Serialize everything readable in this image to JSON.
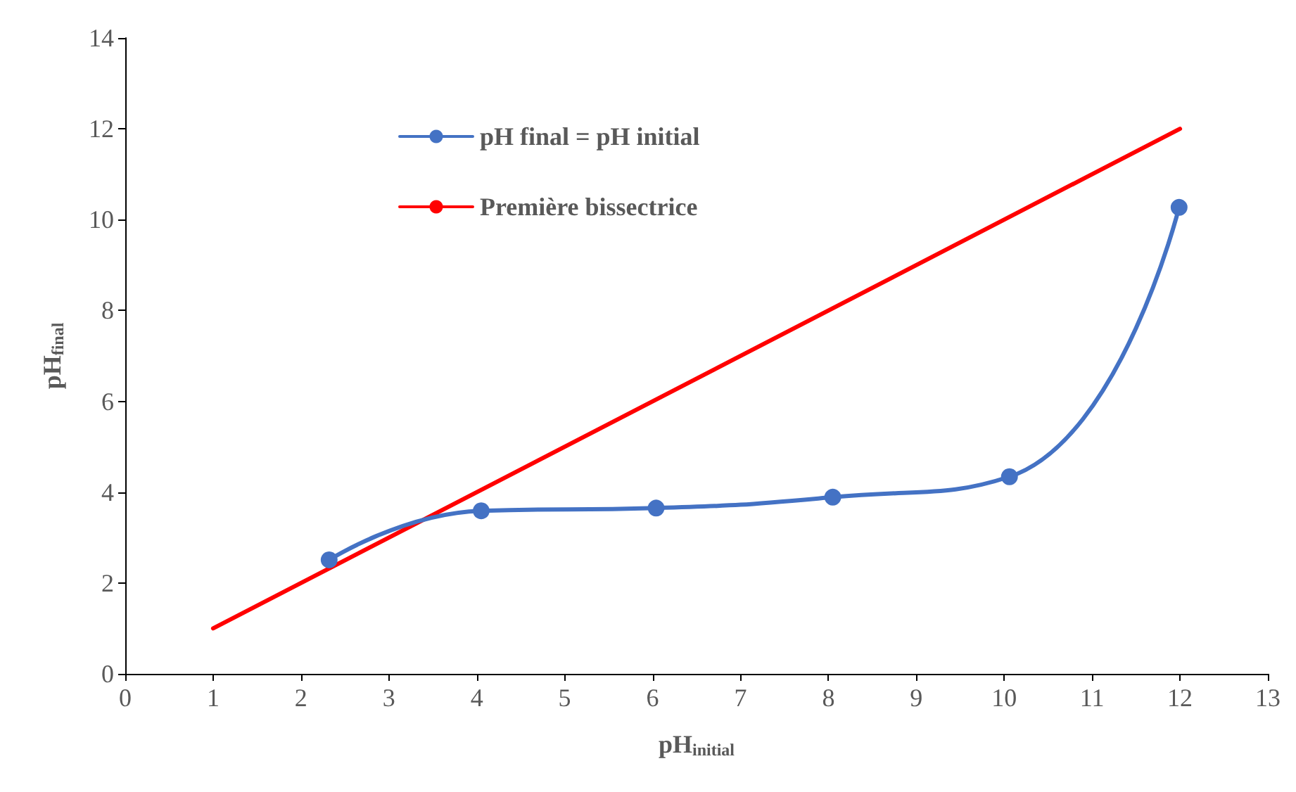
{
  "chart_data": {
    "type": "line",
    "xlabel": "pH$_{initial}$",
    "ylabel": "pH$_{final}$",
    "xlim": [
      0,
      13
    ],
    "xticks": [
      0,
      1,
      2,
      3,
      4,
      5,
      6,
      7,
      8,
      9,
      10,
      11,
      12,
      13
    ],
    "ylim": [
      0,
      14
    ],
    "yticks": [
      0,
      2,
      4,
      6,
      8,
      10,
      12,
      14
    ],
    "grid": false,
    "legend": "top left",
    "series": [
      {
        "name": "pH final = pH initial",
        "color": "#4472c4",
        "marker": "circle",
        "x": [
          2.32,
          4.05,
          6.04,
          8.05,
          10.06,
          11.99
        ],
        "values": [
          2.51,
          3.59,
          3.65,
          3.89,
          4.34,
          10.27
        ]
      },
      {
        "name": "Première bissectrice",
        "color": "#ff0000",
        "marker": "none",
        "x": [
          1,
          12
        ],
        "values": [
          1,
          12
        ]
      }
    ]
  }
}
